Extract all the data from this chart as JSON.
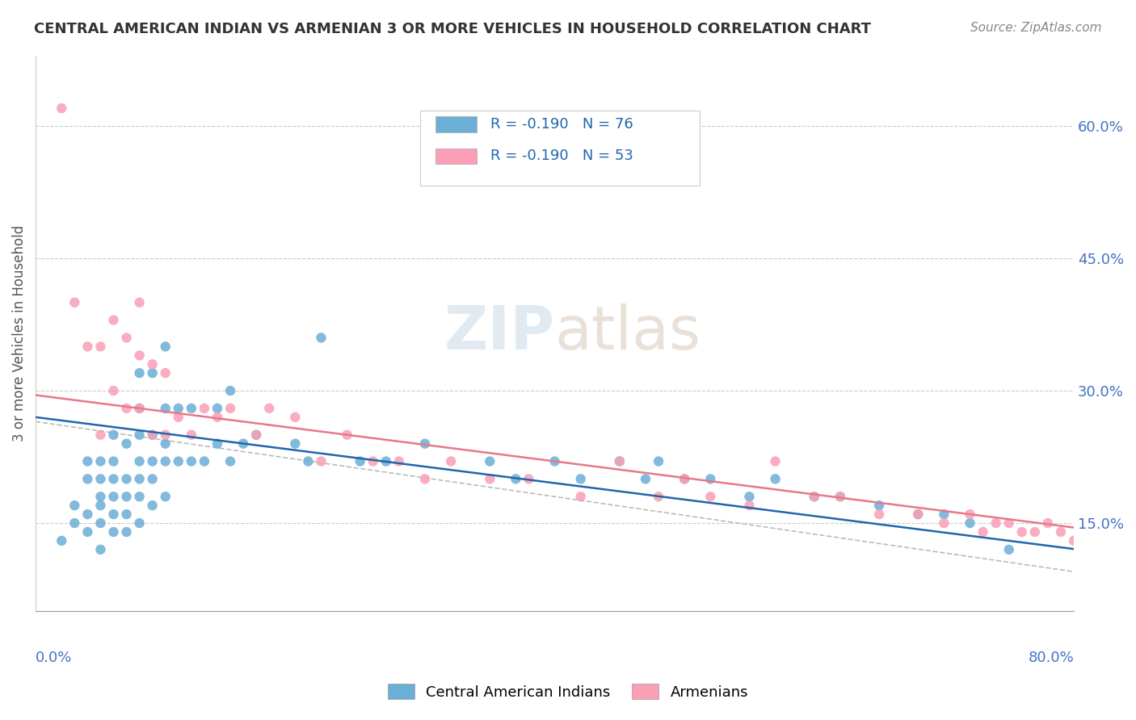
{
  "title": "CENTRAL AMERICAN INDIAN VS ARMENIAN 3 OR MORE VEHICLES IN HOUSEHOLD CORRELATION CHART",
  "source": "Source: ZipAtlas.com",
  "ylabel": "3 or more Vehicles in Household",
  "yticks": [
    0.15,
    0.3,
    0.45,
    0.6
  ],
  "ytick_labels": [
    "15.0%",
    "30.0%",
    "45.0%",
    "60.0%"
  ],
  "xlim": [
    0.0,
    0.8
  ],
  "ylim": [
    0.05,
    0.68
  ],
  "legend_blue_R": "-0.190",
  "legend_blue_N": "76",
  "legend_pink_R": "-0.190",
  "legend_pink_N": "53",
  "blue_color": "#6baed6",
  "pink_color": "#fa9fb5",
  "blue_line_color": "#2166ac",
  "pink_line_color": "#e8788a",
  "dashed_line_color": "#bbbbbb",
  "watermark_zip": "ZIP",
  "watermark_atlas": "atlas",
  "blue_scatter_x": [
    0.02,
    0.03,
    0.03,
    0.04,
    0.04,
    0.04,
    0.04,
    0.05,
    0.05,
    0.05,
    0.05,
    0.05,
    0.05,
    0.06,
    0.06,
    0.06,
    0.06,
    0.06,
    0.06,
    0.07,
    0.07,
    0.07,
    0.07,
    0.07,
    0.08,
    0.08,
    0.08,
    0.08,
    0.08,
    0.08,
    0.08,
    0.09,
    0.09,
    0.09,
    0.09,
    0.09,
    0.1,
    0.1,
    0.1,
    0.1,
    0.1,
    0.11,
    0.11,
    0.12,
    0.12,
    0.13,
    0.14,
    0.14,
    0.15,
    0.15,
    0.16,
    0.17,
    0.2,
    0.21,
    0.22,
    0.25,
    0.27,
    0.3,
    0.35,
    0.37,
    0.4,
    0.42,
    0.45,
    0.47,
    0.48,
    0.5,
    0.52,
    0.55,
    0.57,
    0.6,
    0.62,
    0.65,
    0.68,
    0.7,
    0.72,
    0.75
  ],
  "blue_scatter_y": [
    0.13,
    0.15,
    0.17,
    0.14,
    0.16,
    0.2,
    0.22,
    0.12,
    0.15,
    0.17,
    0.18,
    0.2,
    0.22,
    0.14,
    0.16,
    0.18,
    0.2,
    0.22,
    0.25,
    0.14,
    0.16,
    0.18,
    0.2,
    0.24,
    0.15,
    0.18,
    0.2,
    0.22,
    0.25,
    0.28,
    0.32,
    0.17,
    0.2,
    0.22,
    0.25,
    0.32,
    0.18,
    0.22,
    0.24,
    0.28,
    0.35,
    0.22,
    0.28,
    0.22,
    0.28,
    0.22,
    0.24,
    0.28,
    0.22,
    0.3,
    0.24,
    0.25,
    0.24,
    0.22,
    0.36,
    0.22,
    0.22,
    0.24,
    0.22,
    0.2,
    0.22,
    0.2,
    0.22,
    0.2,
    0.22,
    0.2,
    0.2,
    0.18,
    0.2,
    0.18,
    0.18,
    0.17,
    0.16,
    0.16,
    0.15,
    0.12
  ],
  "pink_scatter_x": [
    0.02,
    0.03,
    0.04,
    0.05,
    0.05,
    0.06,
    0.06,
    0.07,
    0.07,
    0.08,
    0.08,
    0.08,
    0.09,
    0.09,
    0.1,
    0.1,
    0.11,
    0.12,
    0.13,
    0.14,
    0.15,
    0.17,
    0.18,
    0.2,
    0.22,
    0.24,
    0.26,
    0.28,
    0.3,
    0.32,
    0.35,
    0.38,
    0.42,
    0.45,
    0.48,
    0.5,
    0.52,
    0.55,
    0.57,
    0.6,
    0.62,
    0.65,
    0.68,
    0.7,
    0.72,
    0.73,
    0.74,
    0.75,
    0.76,
    0.77,
    0.78,
    0.79,
    0.8
  ],
  "pink_scatter_y": [
    0.62,
    0.4,
    0.35,
    0.25,
    0.35,
    0.3,
    0.38,
    0.28,
    0.36,
    0.28,
    0.34,
    0.4,
    0.25,
    0.33,
    0.25,
    0.32,
    0.27,
    0.25,
    0.28,
    0.27,
    0.28,
    0.25,
    0.28,
    0.27,
    0.22,
    0.25,
    0.22,
    0.22,
    0.2,
    0.22,
    0.2,
    0.2,
    0.18,
    0.22,
    0.18,
    0.2,
    0.18,
    0.17,
    0.22,
    0.18,
    0.18,
    0.16,
    0.16,
    0.15,
    0.16,
    0.14,
    0.15,
    0.15,
    0.14,
    0.14,
    0.15,
    0.14,
    0.13
  ],
  "blue_line_x0": 0.0,
  "blue_line_y0": 0.27,
  "blue_line_x1": 0.75,
  "blue_line_y1": 0.13,
  "pink_line_x0": 0.0,
  "pink_line_y0": 0.295,
  "pink_line_x1": 0.8,
  "pink_line_y1": 0.145,
  "dash_line_x0": 0.0,
  "dash_line_y0": 0.265,
  "dash_line_x1": 0.8,
  "dash_line_y1": 0.095
}
